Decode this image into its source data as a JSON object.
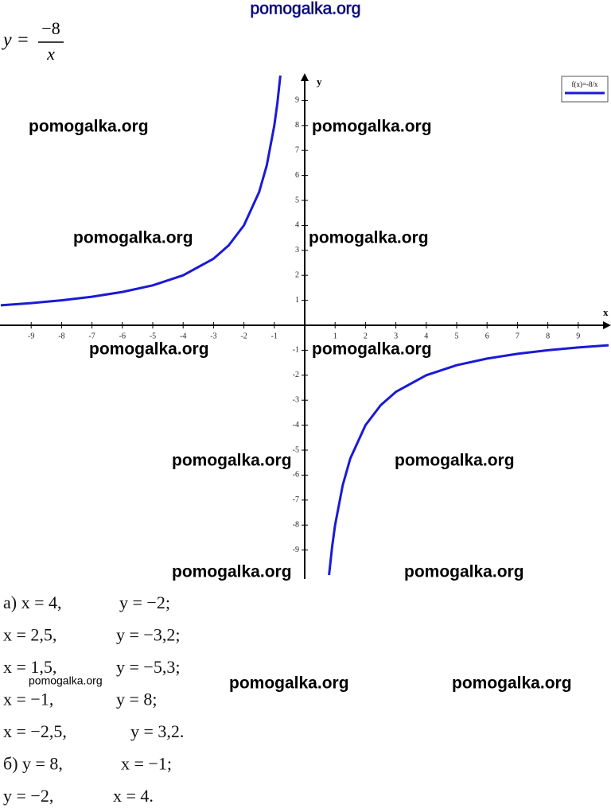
{
  "header": {
    "lhs": "y =",
    "numerator": "−8",
    "denominator": "x"
  },
  "chart_data": {
    "type": "line",
    "x": [
      -10,
      -9,
      -8,
      -7,
      -6,
      -5,
      -4,
      -3,
      -2.5,
      -2,
      -1.5,
      -1.25,
      -1,
      -0.9,
      -0.8,
      0,
      0.8,
      0.9,
      1,
      1.25,
      1.5,
      2,
      2.5,
      3,
      4,
      5,
      6,
      7,
      8,
      9,
      10
    ],
    "series": [
      {
        "name": "f(x)=-8/x",
        "color": "#1a1ad6",
        "values": [
          0.8,
          0.889,
          1,
          1.143,
          1.333,
          1.6,
          2,
          2.667,
          3.2,
          4,
          5.333,
          6.4,
          8,
          8.889,
          10,
          null,
          -10,
          -8.889,
          -8,
          -6.4,
          -5.333,
          -4,
          -3.2,
          -2.667,
          -2,
          -1.6,
          -1.333,
          -1.143,
          -1,
          -0.889,
          -0.8
        ]
      }
    ],
    "xlim": [
      -10,
      10
    ],
    "ylim": [
      -10,
      10
    ],
    "xticks": [
      -9,
      -8,
      -7,
      -6,
      -5,
      -4,
      -3,
      -2,
      -1,
      1,
      2,
      3,
      4,
      5,
      6,
      7,
      8,
      9
    ],
    "yticks": [
      -9,
      -8,
      -7,
      -6,
      -5,
      -4,
      -3,
      -2,
      -1,
      1,
      2,
      3,
      4,
      5,
      6,
      7,
      8,
      9
    ],
    "xlabel": "x",
    "ylabel": "y",
    "legend": "top-right"
  },
  "answers": [
    [
      "а) x = 4,",
      "y = −2;"
    ],
    [
      "x = 2,5,",
      "y = −3,2;"
    ],
    [
      "x = 1,5,",
      "y = −5,3;"
    ],
    [
      "x = −1,",
      "y = 8;"
    ],
    [
      "x = −2,5,",
      "y = 3,2."
    ],
    [
      "б) y = 8,",
      "x = −1;"
    ],
    [
      "y = −2,",
      "x = 4."
    ]
  ],
  "watermarks": [
    "pomogalka.org",
    "pomogalka.org",
    "pomogalka.org",
    "pomogalka.org",
    "pomogalka.org",
    "pomogalka.org",
    "pomogalka.org",
    "pomogalka.org",
    "pomogalka.org",
    "pomogalka.org",
    "pomogalka.org",
    "pomogalka.org",
    "pomogalka.org",
    "pomogalka.org"
  ]
}
